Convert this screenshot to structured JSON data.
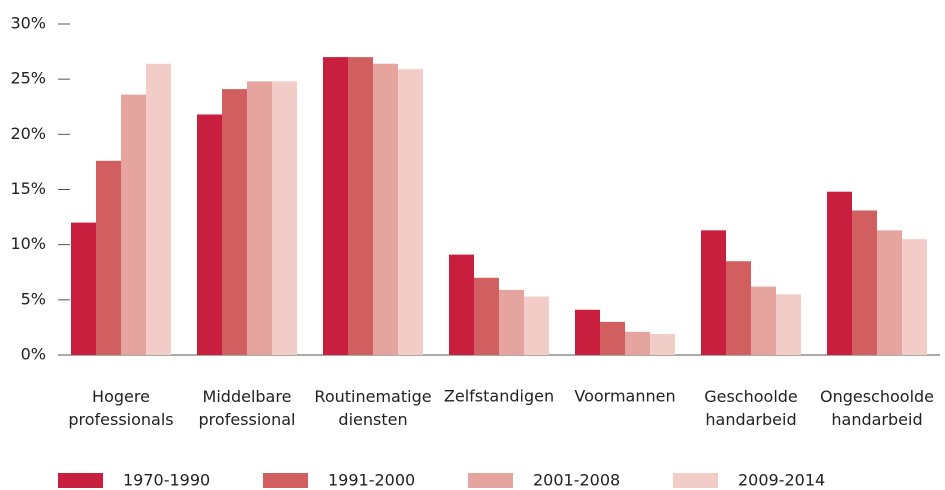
{
  "chart_data": {
    "type": "bar",
    "categories": [
      "Hogere professionals",
      "Middelbare professional",
      "Routinematige diensten",
      "Zelfstandigen",
      "Voormannen",
      "Geschoolde handarbeid",
      "Ongeschoolde handarbeid"
    ],
    "series": [
      {
        "name": "1970-1990",
        "color": "#c81f3f",
        "values": [
          12.0,
          21.8,
          27.0,
          9.1,
          4.1,
          11.3,
          14.8
        ]
      },
      {
        "name": "1991-2000",
        "color": "#d25f5f",
        "values": [
          17.6,
          24.1,
          27.0,
          7.0,
          3.0,
          8.5,
          13.1
        ]
      },
      {
        "name": "2001-2008",
        "color": "#e5a49e",
        "values": [
          23.6,
          24.8,
          26.4,
          5.9,
          2.1,
          6.2,
          11.3
        ]
      },
      {
        "name": "2009-2014",
        "color": "#f2cdc7",
        "values": [
          26.4,
          24.8,
          25.9,
          5.3,
          1.9,
          5.5,
          10.5
        ]
      }
    ],
    "ylim": [
      0,
      30
    ],
    "yticks": [
      {
        "value": 0,
        "label": "0%"
      },
      {
        "value": 5,
        "label": "5%"
      },
      {
        "value": 10,
        "label": "10%"
      },
      {
        "value": 15,
        "label": "15%"
      },
      {
        "value": 20,
        "label": "20%"
      },
      {
        "value": 25,
        "label": "25%"
      },
      {
        "value": 30,
        "label": "30%"
      }
    ]
  }
}
